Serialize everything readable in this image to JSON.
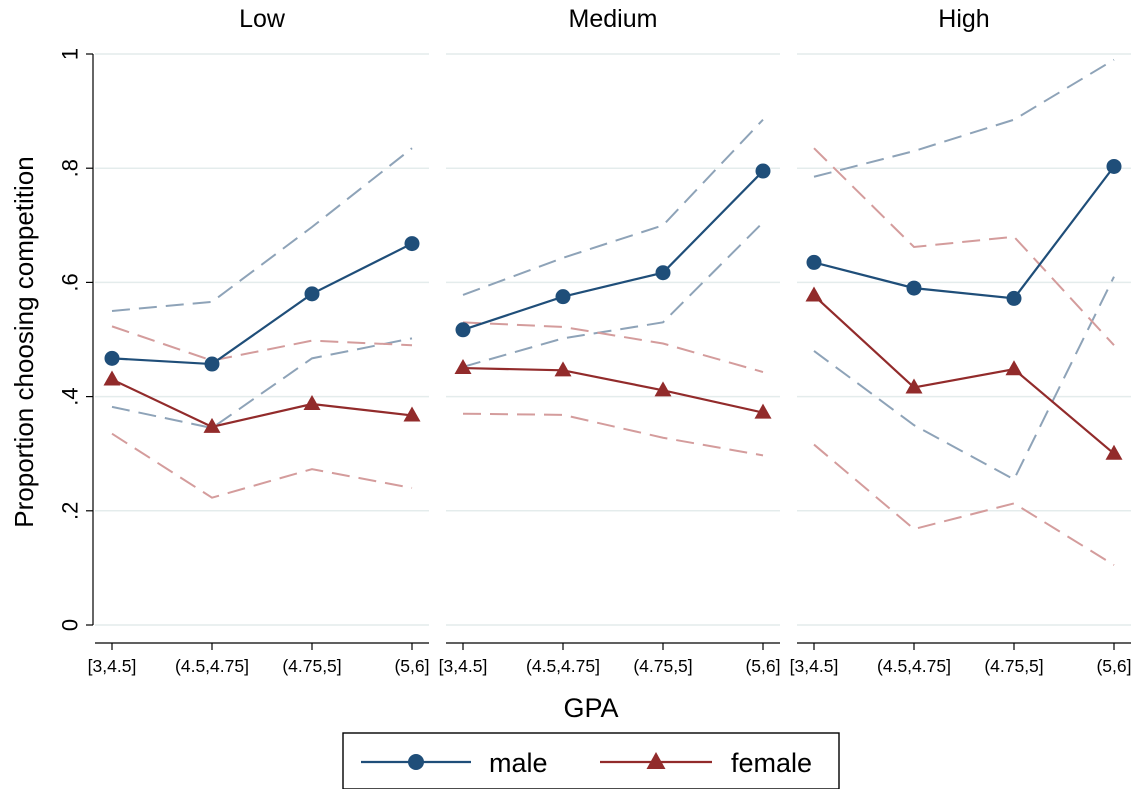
{
  "chart_data": {
    "type": "line",
    "ylabel": "Proportion choosing competition",
    "xlabel": "GPA",
    "ylim": [
      0,
      1
    ],
    "yticks": [
      0,
      0.2,
      0.4,
      0.6,
      0.8,
      1
    ],
    "ytick_labels": [
      "0",
      ".2",
      ".4",
      ".6",
      ".8",
      "1"
    ],
    "grid": true,
    "legend_position": "bottom-center",
    "categories": [
      "[3,4.5]",
      "(4.5,4.75]",
      "(4.75,5]",
      "(5,6]"
    ],
    "colors": {
      "male": "#1f4e79",
      "female": "#922b2b",
      "male_ci": "#8ea3b8",
      "female_ci": "#d49c9c",
      "grid": "#e4ecec"
    },
    "legend": [
      {
        "name": "male",
        "marker": "circle"
      },
      {
        "name": "female",
        "marker": "triangle"
      }
    ],
    "panels": [
      {
        "title": "Low",
        "series": [
          {
            "name": "male",
            "values": [
              0.467,
              0.457,
              0.58,
              0.668
            ],
            "ci_upper": [
              0.55,
              0.566,
              0.697,
              0.835
            ],
            "ci_lower": [
              0.382,
              0.345,
              0.467,
              0.502
            ]
          },
          {
            "name": "female",
            "values": [
              0.43,
              0.347,
              0.387,
              0.367
            ],
            "ci_upper": [
              0.523,
              0.463,
              0.498,
              0.49
            ],
            "ci_lower": [
              0.335,
              0.223,
              0.273,
              0.24
            ]
          }
        ]
      },
      {
        "title": "Medium",
        "series": [
          {
            "name": "male",
            "values": [
              0.517,
              0.575,
              0.617,
              0.795
            ],
            "ci_upper": [
              0.578,
              0.643,
              0.7,
              0.885
            ],
            "ci_lower": [
              0.452,
              0.502,
              0.53,
              0.705
            ]
          },
          {
            "name": "female",
            "values": [
              0.45,
              0.446,
              0.411,
              0.372
            ],
            "ci_upper": [
              0.53,
              0.522,
              0.493,
              0.443
            ],
            "ci_lower": [
              0.37,
              0.368,
              0.328,
              0.297
            ]
          }
        ]
      },
      {
        "title": "High",
        "series": [
          {
            "name": "male",
            "values": [
              0.635,
              0.59,
              0.572,
              0.803
            ],
            "ci_upper": [
              0.785,
              0.83,
              0.885,
              0.99
            ],
            "ci_lower": [
              0.48,
              0.35,
              0.255,
              0.61
            ]
          },
          {
            "name": "female",
            "values": [
              0.577,
              0.416,
              0.448,
              0.3
            ],
            "ci_upper": [
              0.835,
              0.662,
              0.68,
              0.49
            ],
            "ci_lower": [
              0.316,
              0.168,
              0.213,
              0.105
            ]
          }
        ]
      }
    ]
  }
}
